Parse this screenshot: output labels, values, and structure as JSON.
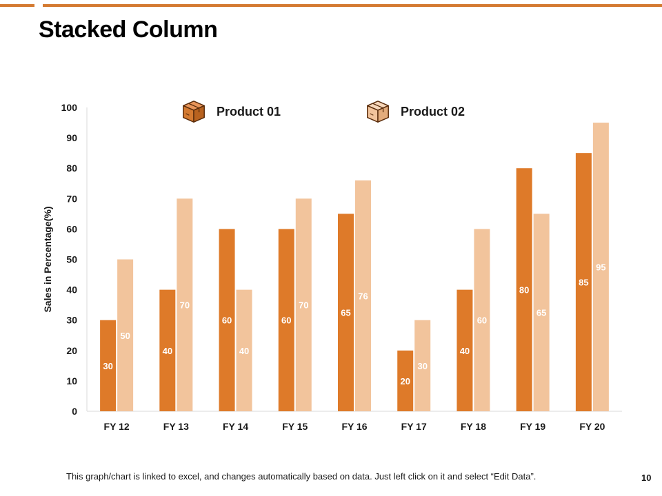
{
  "slide": {
    "title": "Stacked Column",
    "footnote": "This graph/chart is linked to excel, and changes automatically based on data. Just left click on it and select “Edit Data”.",
    "page_number": "10"
  },
  "colors": {
    "accent": "#D47A31",
    "series1": "#DE7A29",
    "series2": "#F2C49C",
    "label": "#ffffff",
    "axis_text": "#1a1a1a",
    "axis_line": "#d9d9d9"
  },
  "legend": [
    {
      "label": "Product 01",
      "icon": "box-icon"
    },
    {
      "label": "Product 02",
      "icon": "box-icon"
    }
  ],
  "chart_data": {
    "type": "bar",
    "title": "",
    "xlabel": "",
    "ylabel": "Sales in Percentage(%)",
    "ylim": [
      0,
      100
    ],
    "yticks": [
      0,
      10,
      20,
      30,
      40,
      50,
      60,
      70,
      80,
      90,
      100
    ],
    "categories": [
      "FY 12",
      "FY 13",
      "FY 14",
      "FY 15",
      "FY 16",
      "FY 17",
      "FY 18",
      "FY 19",
      "FY 20"
    ],
    "series": [
      {
        "name": "Product 01",
        "values": [
          30,
          40,
          60,
          60,
          65,
          20,
          40,
          80,
          85
        ]
      },
      {
        "name": "Product 02",
        "values": [
          50,
          70,
          40,
          70,
          76,
          30,
          60,
          65,
          95
        ]
      }
    ],
    "grid": false,
    "legend_position": "top"
  }
}
